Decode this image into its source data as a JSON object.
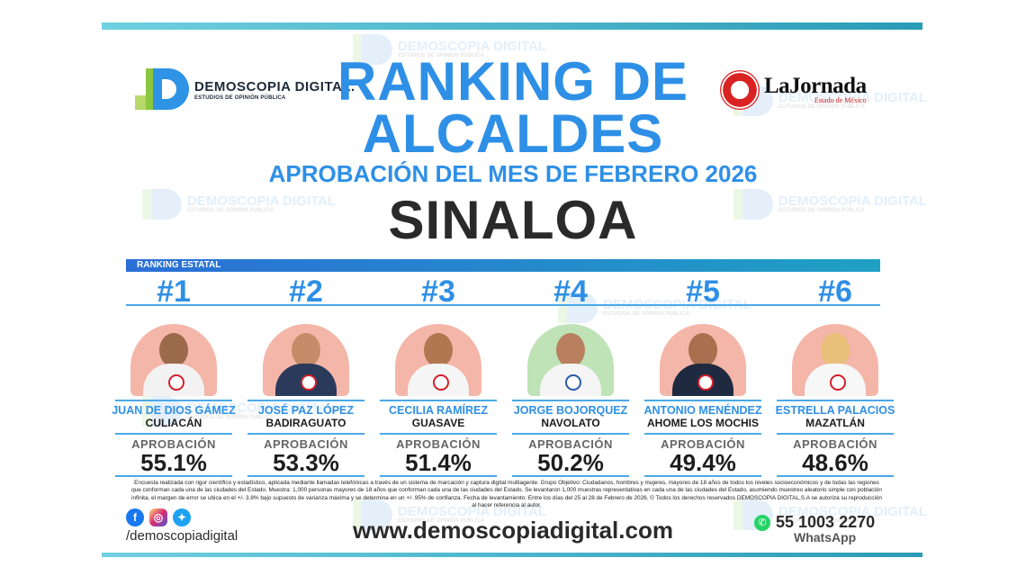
{
  "colors": {
    "accent": "#2e8fe6",
    "dark": "#2a2a2a",
    "brand_green": "#8dc63f",
    "jornada_red": "#d92323"
  },
  "logos": {
    "demoscopia": {
      "name": "DEMOSCOPIA DIGITAL.",
      "sub": "ESTUDIOS DE OPINIÓN PÚBLICA"
    },
    "jornada": {
      "name": "LaJornada",
      "sub": "Estado de México"
    }
  },
  "watermark": {
    "name": "DEMOSCOPIA DIGITAL",
    "sub": "ESTUDIOS DE OPINIÓN PÚBLICA"
  },
  "header": {
    "title_line1": "RANKING DE",
    "title_line2": "ALCALDES",
    "subtitle": "APROBACIÓN DEL MES DE FEBRERO 2026",
    "state": "SINALOA"
  },
  "ranking_label": "RANKING ESTATAL",
  "candidates": [
    {
      "rank": "#1",
      "name": "JUAN DE DIOS GÁMEZ",
      "city": "CULIACÁN",
      "label": "APROBACIÓN",
      "value": "55.1%"
    },
    {
      "rank": "#2",
      "name": "JOSÉ PAZ LÓPEZ",
      "city": "BADIRAGUATO",
      "label": "APROBACIÓN",
      "value": "53.3%"
    },
    {
      "rank": "#3",
      "name": "CECILIA RAMÍREZ",
      "city": "GUASAVE",
      "label": "APROBACIÓN",
      "value": "51.4%"
    },
    {
      "rank": "#4",
      "name": "JORGE BOJORQUEZ",
      "city": "NAVOLATO",
      "label": "APROBACIÓN",
      "value": "50.2%"
    },
    {
      "rank": "#5",
      "name": "ANTONIO MENÉNDEZ",
      "city": "AHOME LOS MOCHIS",
      "label": "APROBACIÓN",
      "value": "49.4%"
    },
    {
      "rank": "#6",
      "name": "ESTRELLA PALACIOS",
      "city": "MAZATLÁN",
      "label": "APROBACIÓN",
      "value": "48.6%"
    }
  ],
  "footnote": "Encuesta realizada con rigor científico y estadístico, aplicada mediante llamadas telefónicas a través de un sistema de marcación y captura digital multiagente. Grupo Objetivo: Ciudadanos, hombres y mujeres, mayores de 18 años de todos los niveles socioeconómicos y de todas las regiones que conforman cada una de las ciudades del Estado. Muestra: 1,000 personas mayores de 18 años que conforman cada una de las ciudades del Estado. Se levantaron 1,000 muestras representativas en cada una de las ciudades del Estado, asumiendo muestreo aleatorio simple con población infinita, el margen de error se ubica en el +/- 3.8% bajo supuesto de varianza máxima y se determina en un +/- 95% de confianza. Fecha de levantamiento: Entre los días del 25 al 28 de Febrero de 2026. © Todos los derechos reservados DEMOSCOPIA DIGITAL,S.A se autoriza su reproducción al hacer referencia al autor.",
  "footer": {
    "handle": "/demoscopiadigital",
    "website": "www.demoscopiadigital.com",
    "phone": "55 1003 2270",
    "whatsapp_label": "WhatsApp",
    "icons": [
      "facebook-icon",
      "instagram-icon",
      "twitter-icon",
      "whatsapp-icon"
    ]
  }
}
